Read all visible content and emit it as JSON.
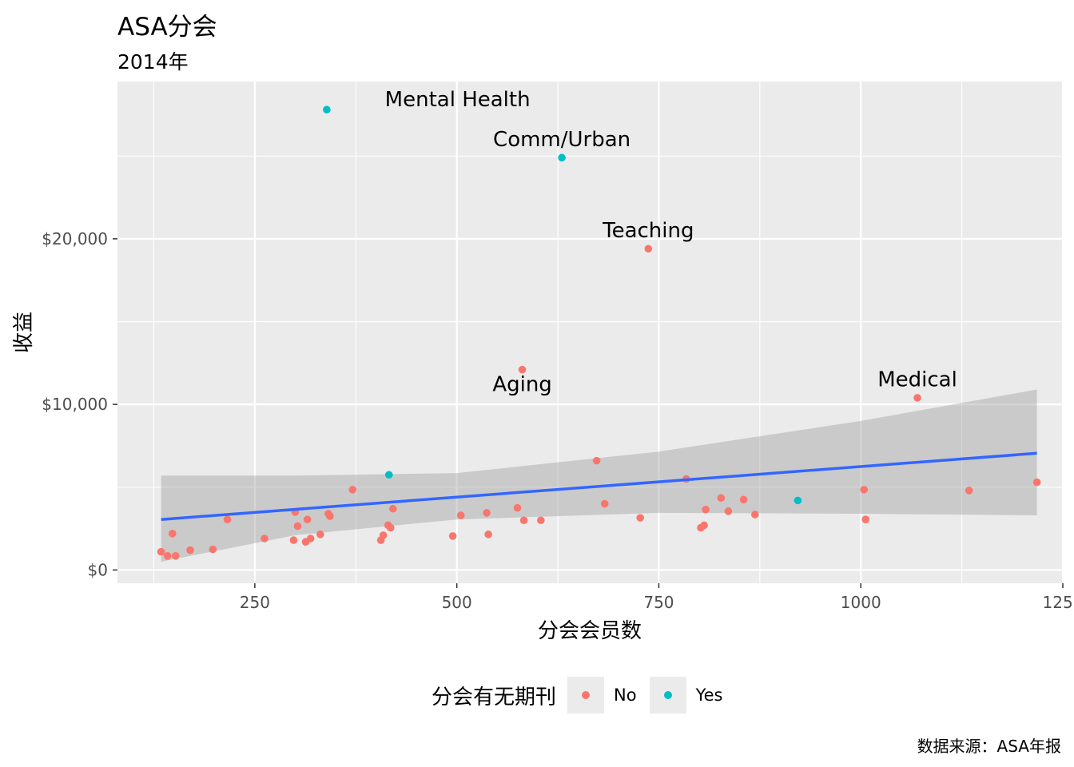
{
  "title": "ASA分会",
  "subtitle": "2014年",
  "caption": "数据来源：ASA年报",
  "legend": {
    "title": "分会有无期刊",
    "items": [
      {
        "label": "No",
        "color": "#F8766D"
      },
      {
        "label": "Yes",
        "color": "#00BFC4"
      }
    ]
  },
  "chart_data": {
    "type": "scatter",
    "xlabel": "分会会员数",
    "ylabel": "收益",
    "xlim": [
      80,
      1250
    ],
    "ylim": [
      -800,
      29500
    ],
    "x_ticks": [
      250,
      500,
      750,
      1000,
      1250
    ],
    "x_tick_labels": [
      "250",
      "500",
      "750",
      "1000",
      "1250"
    ],
    "y_ticks": [
      0,
      10000,
      20000
    ],
    "y_tick_labels": [
      "$0",
      "$10,000",
      "$20,000"
    ],
    "grid": true,
    "legend_position": "bottom",
    "series": [
      {
        "name": "No",
        "color": "#F8766D",
        "points": [
          [
            134,
            1100
          ],
          [
            142,
            850
          ],
          [
            148,
            2200
          ],
          [
            152,
            850
          ],
          [
            170,
            1200
          ],
          [
            198,
            1250
          ],
          [
            216,
            3050
          ],
          [
            262,
            1900
          ],
          [
            298,
            1800
          ],
          [
            300,
            3500
          ],
          [
            303,
            2650
          ],
          [
            313,
            1700
          ],
          [
            315,
            3050
          ],
          [
            319,
            1900
          ],
          [
            331,
            2150
          ],
          [
            341,
            3400
          ],
          [
            343,
            3250
          ],
          [
            371,
            4850
          ],
          [
            406,
            1800
          ],
          [
            409,
            2100
          ],
          [
            415,
            2700
          ],
          [
            418,
            2550
          ],
          [
            421,
            3700
          ],
          [
            495,
            2050
          ],
          [
            505,
            3300
          ],
          [
            537,
            3450
          ],
          [
            539,
            2150
          ],
          [
            575,
            3750
          ],
          [
            581,
            12100
          ],
          [
            583,
            3000
          ],
          [
            604,
            3000
          ],
          [
            673,
            6600
          ],
          [
            683,
            4000
          ],
          [
            727,
            3150
          ],
          [
            737,
            19400
          ],
          [
            784,
            5500
          ],
          [
            802,
            2550
          ],
          [
            806,
            2700
          ],
          [
            808,
            3650
          ],
          [
            827,
            4350
          ],
          [
            836,
            3550
          ],
          [
            855,
            4250
          ],
          [
            869,
            3350
          ],
          [
            1004,
            4850
          ],
          [
            1006,
            3050
          ],
          [
            1070,
            10400
          ],
          [
            1134,
            4800
          ],
          [
            1218,
            5300
          ]
        ]
      },
      {
        "name": "Yes",
        "color": "#00BFC4",
        "points": [
          [
            339,
            27800
          ],
          [
            416,
            5750
          ],
          [
            630,
            24900
          ],
          [
            922,
            4200
          ]
        ]
      }
    ],
    "labels": [
      {
        "text": "Mental Health",
        "x": 411,
        "y": 28000,
        "anchor": "start"
      },
      {
        "text": "Comm/Urban",
        "x": 630,
        "y": 25600,
        "anchor": "middle"
      },
      {
        "text": "Teaching",
        "x": 737,
        "y": 20100,
        "anchor": "middle"
      },
      {
        "text": "Aging",
        "x": 581,
        "y": 10800,
        "anchor": "middle"
      },
      {
        "text": "Medical",
        "x": 1070,
        "y": 11100,
        "anchor": "middle"
      }
    ],
    "trend": {
      "color": "#3366FF",
      "line": [
        [
          134,
          3050
        ],
        [
          1218,
          7050
        ]
      ],
      "band_lower": [
        [
          134,
          500
        ],
        [
          300,
          2100
        ],
        [
          500,
          3050
        ],
        [
          750,
          3450
        ],
        [
          1000,
          3400
        ],
        [
          1218,
          3300
        ]
      ],
      "band_upper": [
        [
          134,
          5700
        ],
        [
          300,
          5700
        ],
        [
          500,
          5850
        ],
        [
          750,
          7150
        ],
        [
          1000,
          9000
        ],
        [
          1218,
          10900
        ]
      ]
    }
  }
}
